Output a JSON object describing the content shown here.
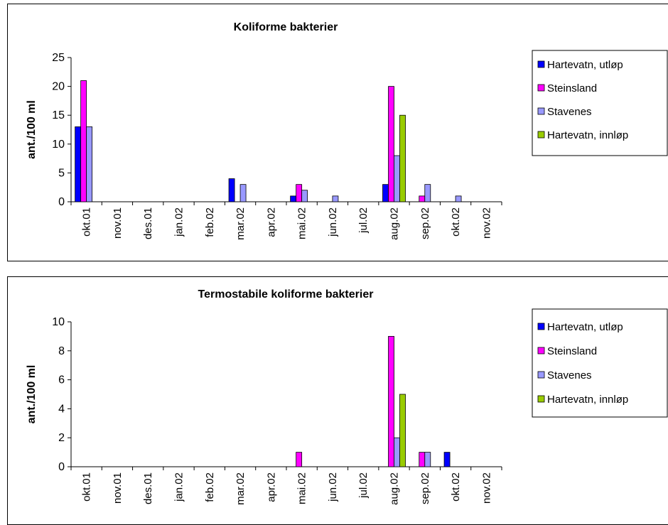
{
  "chart_data": [
    {
      "type": "bar",
      "title": "Koliforme bakterier",
      "xlabel": "",
      "ylabel": "ant./100 ml",
      "ylim": [
        0,
        25
      ],
      "yticks": [
        0,
        5,
        10,
        15,
        20,
        25
      ],
      "grid": false,
      "legend": "right",
      "categories": [
        "okt.01",
        "nov.01",
        "des.01",
        "jan.02",
        "feb.02",
        "mar.02",
        "apr.02",
        "mai.02",
        "jun.02",
        "jul.02",
        "aug.02",
        "sep.02",
        "okt.02",
        "nov.02"
      ],
      "series": [
        {
          "name": "Hartevatn, utløp",
          "color": "#0000FF",
          "values": [
            13,
            0,
            0,
            0,
            0,
            4,
            0,
            1,
            0,
            0,
            3,
            0,
            0,
            0
          ]
        },
        {
          "name": "Steinsland",
          "color": "#FF00FF",
          "values": [
            21,
            0,
            0,
            0,
            0,
            0,
            0,
            3,
            0,
            0,
            20,
            1,
            0,
            0
          ]
        },
        {
          "name": "Stavenes",
          "color": "#9999FF",
          "values": [
            13,
            0,
            0,
            0,
            0,
            3,
            0,
            2,
            1,
            0,
            8,
            3,
            1,
            0
          ]
        },
        {
          "name": "Hartevatn, innløp",
          "color": "#99CC00",
          "values": [
            0,
            0,
            0,
            0,
            0,
            0,
            0,
            0,
            0,
            0,
            15,
            0,
            0,
            0
          ]
        }
      ]
    },
    {
      "type": "bar",
      "title": "Termostabile koliforme bakterier",
      "xlabel": "",
      "ylabel": "ant./100 ml",
      "ylim": [
        0,
        10
      ],
      "yticks": [
        0,
        2,
        4,
        6,
        8,
        10
      ],
      "grid": false,
      "legend": "right",
      "categories": [
        "okt.01",
        "nov.01",
        "des.01",
        "jan.02",
        "feb.02",
        "mar.02",
        "apr.02",
        "mai.02",
        "jun.02",
        "jul.02",
        "aug.02",
        "sep.02",
        "okt.02",
        "nov.02"
      ],
      "series": [
        {
          "name": "Hartevatn, utløp",
          "color": "#0000FF",
          "values": [
            0,
            0,
            0,
            0,
            0,
            0,
            0,
            0,
            0,
            0,
            0,
            0,
            1,
            0
          ]
        },
        {
          "name": "Steinsland",
          "color": "#FF00FF",
          "values": [
            0,
            0,
            0,
            0,
            0,
            0,
            0,
            1,
            0,
            0,
            9,
            1,
            0,
            0
          ]
        },
        {
          "name": "Stavenes",
          "color": "#9999FF",
          "values": [
            0,
            0,
            0,
            0,
            0,
            0,
            0,
            0,
            0,
            0,
            2,
            1,
            0,
            0
          ]
        },
        {
          "name": "Hartevatn, innløp",
          "color": "#99CC00",
          "values": [
            0,
            0,
            0,
            0,
            0,
            0,
            0,
            0,
            0,
            0,
            5,
            0,
            0,
            0
          ]
        }
      ]
    }
  ]
}
